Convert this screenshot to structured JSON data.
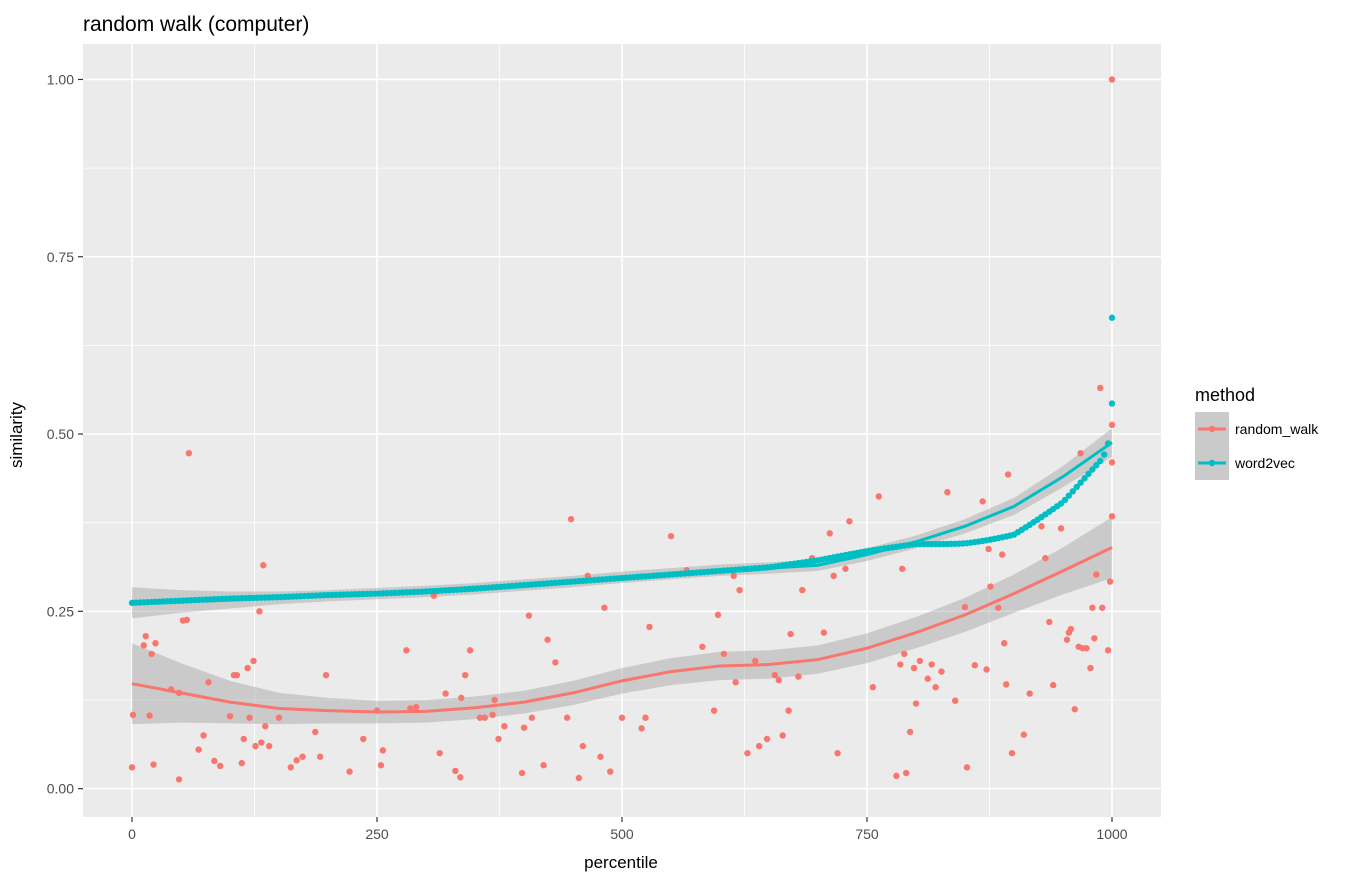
{
  "chart_data": {
    "type": "scatter",
    "title": "random walk (computer)",
    "xlabel": "percentile",
    "ylabel": "similarity",
    "xlim": [
      -50,
      1050
    ],
    "ylim": [
      -0.04,
      1.05
    ],
    "x_ticks": [
      0,
      250,
      500,
      750,
      1000
    ],
    "x_tick_labels": [
      "0",
      "250",
      "500",
      "750",
      "1000"
    ],
    "y_ticks": [
      0.0,
      0.25,
      0.5,
      0.75,
      1.0
    ],
    "y_tick_labels": [
      "0.00",
      "0.25",
      "0.50",
      "0.75",
      "1.00"
    ],
    "grid": true,
    "legend": {
      "title": "method",
      "placement": "right"
    },
    "series": [
      {
        "name": "random_walk",
        "color": "#F8766D",
        "points": [
          [
            0,
            0.03
          ],
          [
            1,
            0.104
          ],
          [
            12,
            0.202
          ],
          [
            14,
            0.215
          ],
          [
            18,
            0.103
          ],
          [
            20,
            0.19
          ],
          [
            22,
            0.034
          ],
          [
            24,
            0.205
          ],
          [
            40,
            0.14
          ],
          [
            48,
            0.135
          ],
          [
            48,
            0.013
          ],
          [
            52,
            0.237
          ],
          [
            56,
            0.238
          ],
          [
            58,
            0.473
          ],
          [
            68,
            0.055
          ],
          [
            73,
            0.075
          ],
          [
            78,
            0.15
          ],
          [
            84,
            0.039
          ],
          [
            90,
            0.032
          ],
          [
            100,
            0.102
          ],
          [
            104,
            0.16
          ],
          [
            107,
            0.16
          ],
          [
            112,
            0.036
          ],
          [
            114,
            0.07
          ],
          [
            118,
            0.17
          ],
          [
            120,
            0.1
          ],
          [
            124,
            0.18
          ],
          [
            126,
            0.06
          ],
          [
            130,
            0.25
          ],
          [
            132,
            0.065
          ],
          [
            134,
            0.315
          ],
          [
            136,
            0.088
          ],
          [
            140,
            0.06
          ],
          [
            150,
            0.1
          ],
          [
            162,
            0.03
          ],
          [
            168,
            0.04
          ],
          [
            174,
            0.045
          ],
          [
            187,
            0.08
          ],
          [
            192,
            0.045
          ],
          [
            198,
            0.16
          ],
          [
            222,
            0.024
          ],
          [
            236,
            0.07
          ],
          [
            250,
            0.11
          ],
          [
            254,
            0.033
          ],
          [
            256,
            0.054
          ],
          [
            280,
            0.195
          ],
          [
            284,
            0.113
          ],
          [
            290,
            0.115
          ],
          [
            308,
            0.272
          ],
          [
            314,
            0.05
          ],
          [
            320,
            0.134
          ],
          [
            330,
            0.025
          ],
          [
            335,
            0.016
          ],
          [
            336,
            0.128
          ],
          [
            340,
            0.16
          ],
          [
            345,
            0.195
          ],
          [
            355,
            0.1
          ],
          [
            360,
            0.1
          ],
          [
            368,
            0.104
          ],
          [
            370,
            0.125
          ],
          [
            374,
            0.07
          ],
          [
            380,
            0.088
          ],
          [
            398,
            0.022
          ],
          [
            400,
            0.086
          ],
          [
            405,
            0.244
          ],
          [
            408,
            0.1
          ],
          [
            420,
            0.033
          ],
          [
            424,
            0.21
          ],
          [
            432,
            0.178
          ],
          [
            444,
            0.1
          ],
          [
            448,
            0.38
          ],
          [
            456,
            0.015
          ],
          [
            460,
            0.06
          ],
          [
            465,
            0.3
          ],
          [
            478,
            0.045
          ],
          [
            482,
            0.255
          ],
          [
            488,
            0.024
          ],
          [
            500,
            0.1
          ],
          [
            520,
            0.085
          ],
          [
            524,
            0.1
          ],
          [
            528,
            0.228
          ],
          [
            550,
            0.356
          ],
          [
            566,
            0.308
          ],
          [
            582,
            0.2
          ],
          [
            594,
            0.11
          ],
          [
            598,
            0.245
          ],
          [
            604,
            0.19
          ],
          [
            614,
            0.3
          ],
          [
            616,
            0.15
          ],
          [
            620,
            0.28
          ],
          [
            628,
            0.05
          ],
          [
            636,
            0.18
          ],
          [
            640,
            0.06
          ],
          [
            648,
            0.07
          ],
          [
            656,
            0.16
          ],
          [
            660,
            0.153
          ],
          [
            664,
            0.075
          ],
          [
            670,
            0.11
          ],
          [
            672,
            0.218
          ],
          [
            680,
            0.158
          ],
          [
            684,
            0.28
          ],
          [
            694,
            0.325
          ],
          [
            706,
            0.22
          ],
          [
            712,
            0.36
          ],
          [
            716,
            0.3
          ],
          [
            720,
            0.05
          ],
          [
            728,
            0.31
          ],
          [
            732,
            0.377
          ],
          [
            756,
            0.143
          ],
          [
            762,
            0.412
          ],
          [
            780,
            0.018
          ],
          [
            784,
            0.175
          ],
          [
            786,
            0.31
          ],
          [
            788,
            0.19
          ],
          [
            790,
            0.022
          ],
          [
            794,
            0.08
          ],
          [
            798,
            0.17
          ],
          [
            800,
            0.12
          ],
          [
            804,
            0.18
          ],
          [
            812,
            0.155
          ],
          [
            816,
            0.175
          ],
          [
            820,
            0.143
          ],
          [
            826,
            0.165
          ],
          [
            832,
            0.418
          ],
          [
            840,
            0.124
          ],
          [
            850,
            0.256
          ],
          [
            852,
            0.03
          ],
          [
            860,
            0.174
          ],
          [
            868,
            0.405
          ],
          [
            872,
            0.168
          ],
          [
            874,
            0.338
          ],
          [
            876,
            0.285
          ],
          [
            884,
            0.255
          ],
          [
            888,
            0.33
          ],
          [
            890,
            0.205
          ],
          [
            892,
            0.147
          ],
          [
            894,
            0.443
          ],
          [
            898,
            0.05
          ],
          [
            910,
            0.076
          ],
          [
            916,
            0.134
          ],
          [
            928,
            0.37
          ],
          [
            932,
            0.325
          ],
          [
            936,
            0.235
          ],
          [
            940,
            0.146
          ],
          [
            948,
            0.367
          ],
          [
            954,
            0.21
          ],
          [
            956,
            0.22
          ],
          [
            958,
            0.225
          ],
          [
            962,
            0.112
          ],
          [
            966,
            0.2
          ],
          [
            968,
            0.473
          ],
          [
            970,
            0.198
          ],
          [
            974,
            0.198
          ],
          [
            978,
            0.17
          ],
          [
            980,
            0.255
          ],
          [
            982,
            0.212
          ],
          [
            984,
            0.302
          ],
          [
            988,
            0.565
          ],
          [
            990,
            0.255
          ],
          [
            996,
            0.195
          ],
          [
            998,
            0.292
          ],
          [
            1000,
            0.384
          ],
          [
            1000,
            0.46
          ],
          [
            1000,
            0.513
          ],
          [
            1000,
            1.0
          ]
        ],
        "smooth": [
          [
            0,
            0.148
          ],
          [
            50,
            0.135
          ],
          [
            100,
            0.122
          ],
          [
            150,
            0.113
          ],
          [
            200,
            0.11
          ],
          [
            250,
            0.108
          ],
          [
            300,
            0.109
          ],
          [
            350,
            0.114
          ],
          [
            400,
            0.122
          ],
          [
            450,
            0.135
          ],
          [
            500,
            0.152
          ],
          [
            550,
            0.165
          ],
          [
            600,
            0.173
          ],
          [
            650,
            0.175
          ],
          [
            700,
            0.182
          ],
          [
            750,
            0.198
          ],
          [
            800,
            0.22
          ],
          [
            850,
            0.245
          ],
          [
            900,
            0.275
          ],
          [
            950,
            0.307
          ],
          [
            1000,
            0.34
          ]
        ],
        "band_halfwidth": [
          0.057,
          0.042,
          0.03,
          0.022,
          0.018,
          0.016,
          0.016,
          0.016,
          0.016,
          0.017,
          0.018,
          0.019,
          0.02,
          0.02,
          0.02,
          0.021,
          0.022,
          0.024,
          0.027,
          0.033,
          0.043
        ]
      },
      {
        "name": "word2vec",
        "color": "#00BFC4",
        "curve_points": [
          [
            0,
            0.262
          ],
          [
            50,
            0.265
          ],
          [
            100,
            0.268
          ],
          [
            150,
            0.27
          ],
          [
            200,
            0.273
          ],
          [
            250,
            0.275
          ],
          [
            300,
            0.278
          ],
          [
            350,
            0.282
          ],
          [
            400,
            0.287
          ],
          [
            450,
            0.292
          ],
          [
            500,
            0.297
          ],
          [
            550,
            0.302
          ],
          [
            600,
            0.307
          ],
          [
            650,
            0.312
          ],
          [
            700,
            0.322
          ],
          [
            750,
            0.335
          ],
          [
            800,
            0.345
          ],
          [
            850,
            0.355
          ],
          [
            900,
            0.37
          ],
          [
            950,
            0.41
          ],
          [
            980,
            0.45
          ],
          [
            990,
            0.465
          ],
          [
            995,
            0.48
          ],
          [
            998,
            0.5
          ],
          [
            1000,
            0.543
          ],
          [
            1000,
            0.664
          ]
        ],
        "smooth": [
          [
            0,
            0.262
          ],
          [
            50,
            0.264
          ],
          [
            100,
            0.266
          ],
          [
            150,
            0.269
          ],
          [
            200,
            0.272
          ],
          [
            250,
            0.275
          ],
          [
            300,
            0.278
          ],
          [
            350,
            0.282
          ],
          [
            400,
            0.287
          ],
          [
            450,
            0.292
          ],
          [
            500,
            0.298
          ],
          [
            550,
            0.303
          ],
          [
            600,
            0.308
          ],
          [
            650,
            0.311
          ],
          [
            700,
            0.315
          ],
          [
            750,
            0.33
          ],
          [
            800,
            0.348
          ],
          [
            850,
            0.37
          ],
          [
            900,
            0.398
          ],
          [
            950,
            0.44
          ],
          [
            1000,
            0.488
          ]
        ],
        "band_halfwidth": [
          0.022,
          0.016,
          0.012,
          0.009,
          0.008,
          0.008,
          0.008,
          0.008,
          0.008,
          0.008,
          0.008,
          0.008,
          0.008,
          0.008,
          0.008,
          0.009,
          0.009,
          0.01,
          0.012,
          0.015,
          0.02
        ]
      }
    ]
  }
}
